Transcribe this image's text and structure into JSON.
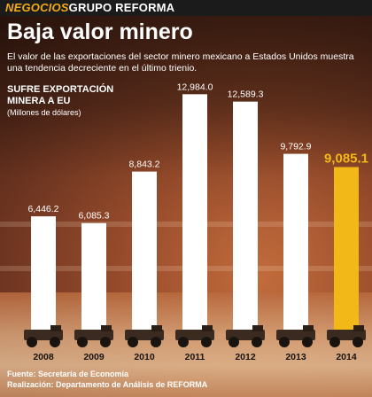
{
  "header": {
    "section": "NEGOCIOS",
    "brand": "GRUPO REFORMA"
  },
  "title": "Baja valor minero",
  "subtitle": "El valor de las exportaciones del sector minero mexicano a Estados Unidos muestra una tendencia decreciente en el último trienio.",
  "chart_title": "SUFRE EXPORTACIÓN MINERA A EU",
  "chart_units": "(Millones de dólares)",
  "colors": {
    "bar": "#ffffff",
    "highlight": "#f2b818",
    "highlight_label": "#f2b818",
    "label": "#ffffff"
  },
  "chart_data": {
    "type": "bar",
    "title": "SUFRE EXPORTACIÓN MINERA A EU",
    "ylabel": "(Millones de dólares)",
    "categories": [
      "2008",
      "2009",
      "2010",
      "2011",
      "2012",
      "2013",
      "2014"
    ],
    "values": [
      6446.2,
      6085.3,
      8843.2,
      12984.0,
      12589.3,
      9792.9,
      9085.1
    ],
    "value_labels": [
      "6,446.2",
      "6,085.3",
      "8,843.2",
      "12,984.0",
      "12,589.3",
      "9,792.9",
      "9,085.1"
    ],
    "highlight_index": 6,
    "ylim": [
      0,
      13000
    ],
    "grid": false,
    "legend": "none"
  },
  "source": {
    "line1": "Fuente: Secretaría de Economía",
    "line2": "Realización: Departamento de Análisis de REFORMA"
  }
}
